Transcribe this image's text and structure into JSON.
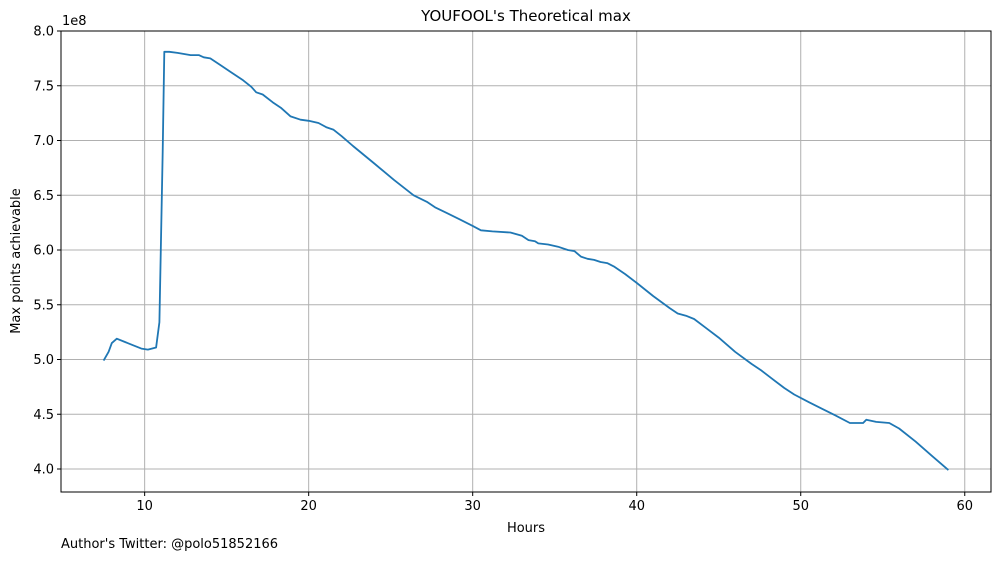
{
  "chart_data": {
    "type": "line",
    "title": "YOUFOOL's Theoretical max",
    "xlabel": "Hours",
    "ylabel": "Max points achievable",
    "y_scale_label": "1e8",
    "xlim": [
      4.9,
      61.6
    ],
    "ylim": [
      3.79,
      8.0
    ],
    "x_ticks": [
      10,
      20,
      30,
      40,
      50,
      60
    ],
    "x_tick_labels": [
      "10",
      "20",
      "30",
      "40",
      "50",
      "60"
    ],
    "y_ticks": [
      4.0,
      4.5,
      5.0,
      5.5,
      6.0,
      6.5,
      7.0,
      7.5,
      8.0
    ],
    "y_tick_labels": [
      "4.0",
      "4.5",
      "5.0",
      "5.5",
      "6.0",
      "6.5",
      "7.0",
      "7.5",
      "8.0"
    ],
    "grid": true,
    "line_color": "#1f77b4",
    "series": [
      {
        "points": [
          [
            7.5,
            4.99
          ],
          [
            7.8,
            5.07
          ],
          [
            8.0,
            5.15
          ],
          [
            8.3,
            5.19
          ],
          [
            8.8,
            5.16
          ],
          [
            9.3,
            5.13
          ],
          [
            9.8,
            5.1
          ],
          [
            10.2,
            5.09
          ],
          [
            10.7,
            5.11
          ],
          [
            10.9,
            5.34
          ],
          [
            11.1,
            6.9
          ],
          [
            11.2,
            7.81
          ],
          [
            11.5,
            7.81
          ],
          [
            12.0,
            7.8
          ],
          [
            12.8,
            7.78
          ],
          [
            13.3,
            7.78
          ],
          [
            13.6,
            7.76
          ],
          [
            14.0,
            7.75
          ],
          [
            14.6,
            7.69
          ],
          [
            15.3,
            7.62
          ],
          [
            16.0,
            7.55
          ],
          [
            16.5,
            7.49
          ],
          [
            16.8,
            7.44
          ],
          [
            17.2,
            7.42
          ],
          [
            17.8,
            7.35
          ],
          [
            18.3,
            7.3
          ],
          [
            18.9,
            7.22
          ],
          [
            19.5,
            7.19
          ],
          [
            20.0,
            7.18
          ],
          [
            20.6,
            7.16
          ],
          [
            21.1,
            7.12
          ],
          [
            21.5,
            7.1
          ],
          [
            22.0,
            7.04
          ],
          [
            22.7,
            6.95
          ],
          [
            24.0,
            6.79
          ],
          [
            25.2,
            6.64
          ],
          [
            26.4,
            6.5
          ],
          [
            27.2,
            6.44
          ],
          [
            27.7,
            6.39
          ],
          [
            28.4,
            6.34
          ],
          [
            29.2,
            6.28
          ],
          [
            30.0,
            6.22
          ],
          [
            30.5,
            6.18
          ],
          [
            31.2,
            6.17
          ],
          [
            32.3,
            6.16
          ],
          [
            33.0,
            6.13
          ],
          [
            33.4,
            6.09
          ],
          [
            33.8,
            6.08
          ],
          [
            34.0,
            6.06
          ],
          [
            34.6,
            6.05
          ],
          [
            35.2,
            6.03
          ],
          [
            35.8,
            6.0
          ],
          [
            36.2,
            5.99
          ],
          [
            36.6,
            5.94
          ],
          [
            37.0,
            5.92
          ],
          [
            37.4,
            5.91
          ],
          [
            37.8,
            5.89
          ],
          [
            38.2,
            5.88
          ],
          [
            38.6,
            5.85
          ],
          [
            39.3,
            5.78
          ],
          [
            40.0,
            5.7
          ],
          [
            41.0,
            5.58
          ],
          [
            42.0,
            5.47
          ],
          [
            42.5,
            5.42
          ],
          [
            43.0,
            5.4
          ],
          [
            43.5,
            5.37
          ],
          [
            44.2,
            5.29
          ],
          [
            45.0,
            5.2
          ],
          [
            46.0,
            5.07
          ],
          [
            47.0,
            4.96
          ],
          [
            47.6,
            4.9
          ],
          [
            48.2,
            4.83
          ],
          [
            49.0,
            4.74
          ],
          [
            49.6,
            4.68
          ],
          [
            50.5,
            4.61
          ],
          [
            51.3,
            4.55
          ],
          [
            52.1,
            4.49
          ],
          [
            53.0,
            4.42
          ],
          [
            53.8,
            4.42
          ],
          [
            54.0,
            4.45
          ],
          [
            54.6,
            4.43
          ],
          [
            55.4,
            4.42
          ],
          [
            56.0,
            4.37
          ],
          [
            57.0,
            4.25
          ],
          [
            58.0,
            4.12
          ],
          [
            59.0,
            3.99
          ]
        ]
      }
    ]
  },
  "footnote": "Author's Twitter: @polo51852166"
}
